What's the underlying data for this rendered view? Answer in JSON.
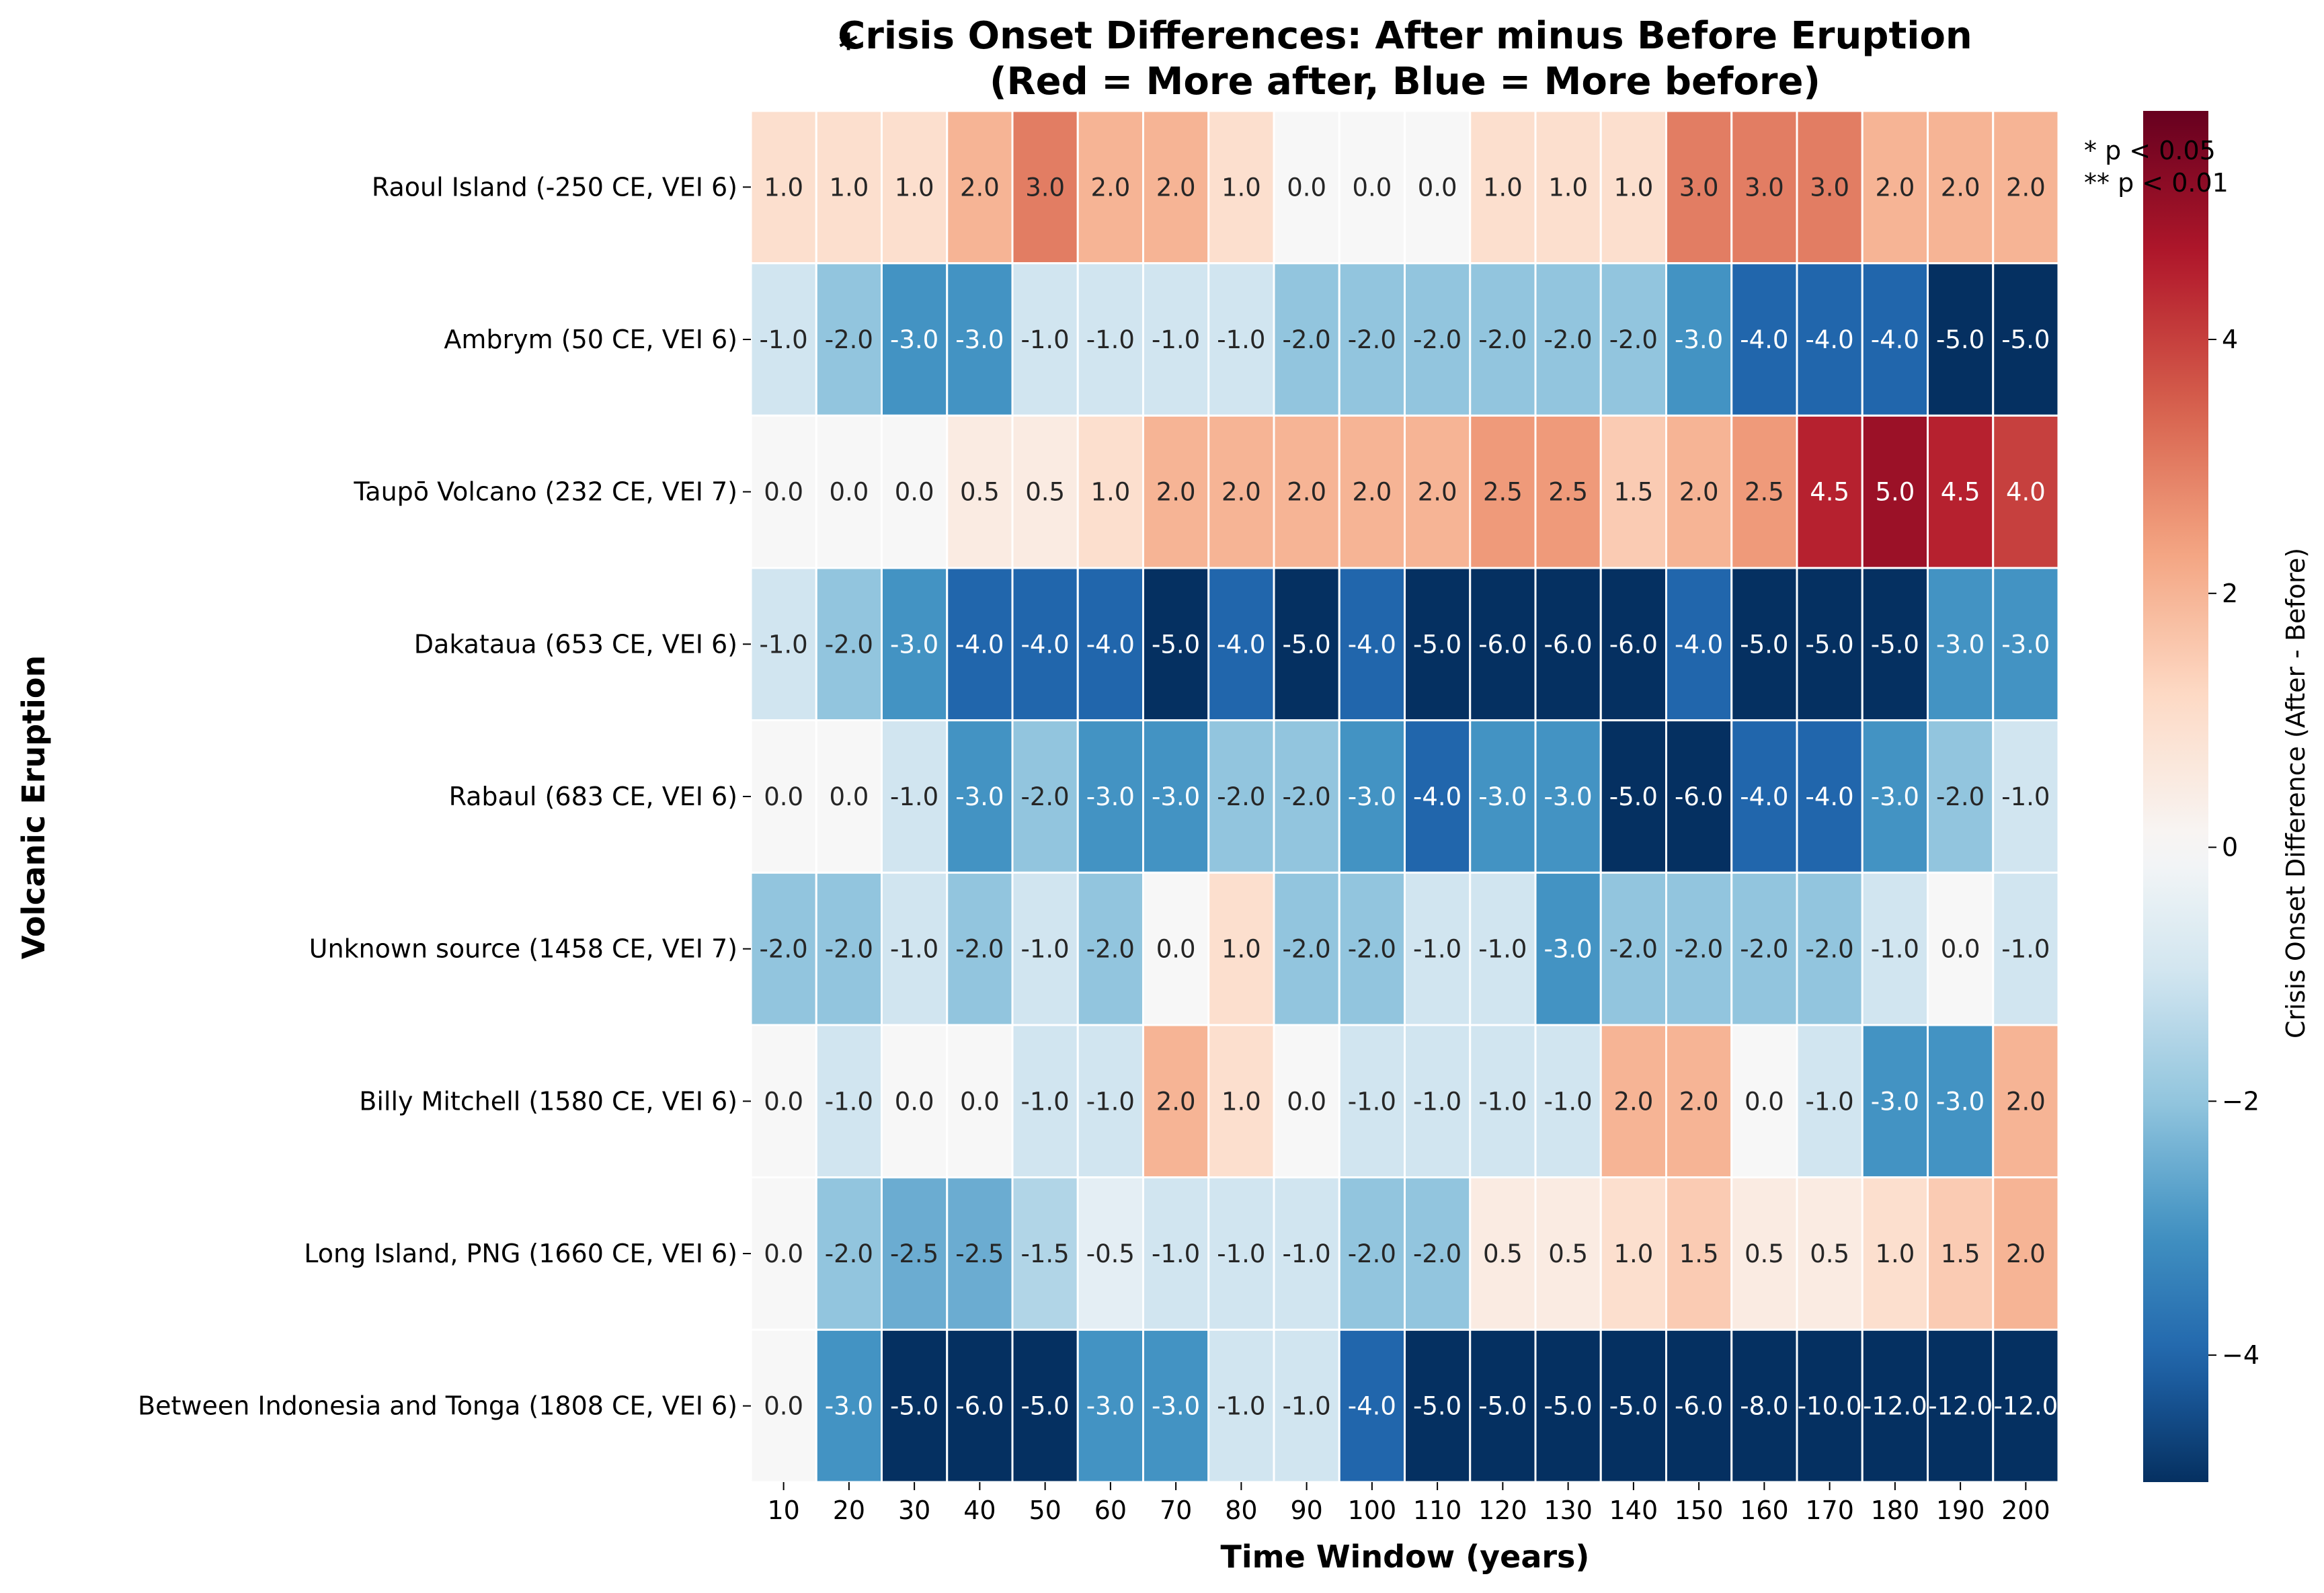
{
  "chart_data": {
    "type": "heatmap",
    "title": "Crisis Onset Differences: After minus Before Eruption",
    "subtitle": "(Red = More after, Blue = More before)",
    "title_marker": "*",
    "xlabel": "Time Window (years)",
    "ylabel": "Volcanic Eruption",
    "colorbar_label": "Crisis Onset Difference (After - Before)",
    "colorbar_range": [
      -5,
      5.8
    ],
    "colorbar_ticks": [
      -4,
      -2,
      0,
      2,
      4
    ],
    "colormap": "RdBu_r",
    "annotation_lines": [
      "* p < 0.05",
      "** p < 0.01"
    ],
    "x": [
      "10",
      "20",
      "30",
      "40",
      "50",
      "60",
      "70",
      "80",
      "90",
      "100",
      "110",
      "120",
      "130",
      "140",
      "150",
      "160",
      "170",
      "180",
      "190",
      "200"
    ],
    "y": [
      "Raoul Island  (-250 CE, VEI 6)",
      "Ambrym  (50 CE, VEI 6)",
      "Taupō Volcano  (232 CE, VEI 7)",
      "Dakataua  (653 CE, VEI 6)",
      "Rabaul  (683 CE, VEI 6)",
      "Unknown source  (1458 CE, VEI 7)",
      "Billy Mitchell  (1580 CE, VEI 6)",
      "Long Island, PNG  (1660 CE, VEI 6)",
      "Between Indonesia and Tonga  (1808 CE, VEI 6)"
    ],
    "values": [
      [
        1.0,
        1.0,
        1.0,
        2.0,
        3.0,
        2.0,
        2.0,
        1.0,
        0.0,
        0.0,
        0.0,
        1.0,
        1.0,
        1.0,
        3.0,
        3.0,
        3.0,
        2.0,
        2.0,
        2.0
      ],
      [
        -1.0,
        -2.0,
        -3.0,
        -3.0,
        -1.0,
        -1.0,
        -1.0,
        -1.0,
        -2.0,
        -2.0,
        -2.0,
        -2.0,
        -2.0,
        -2.0,
        -3.0,
        -4.0,
        -4.0,
        -4.0,
        -5.0,
        -5.0
      ],
      [
        0.0,
        0.0,
        0.0,
        0.5,
        0.5,
        1.0,
        2.0,
        2.0,
        2.0,
        2.0,
        2.0,
        2.5,
        2.5,
        1.5,
        2.0,
        2.5,
        4.5,
        5.0,
        4.5,
        4.0
      ],
      [
        -1.0,
        -2.0,
        -3.0,
        -4.0,
        -4.0,
        -4.0,
        -5.0,
        -4.0,
        -5.0,
        -4.0,
        -5.0,
        -6.0,
        -6.0,
        -6.0,
        -4.0,
        -5.0,
        -5.0,
        -5.0,
        -3.0,
        -3.0
      ],
      [
        0.0,
        0.0,
        -1.0,
        -3.0,
        -2.0,
        -3.0,
        -3.0,
        -2.0,
        -2.0,
        -3.0,
        -4.0,
        -3.0,
        -3.0,
        -5.0,
        -6.0,
        -4.0,
        -4.0,
        -3.0,
        -2.0,
        -1.0
      ],
      [
        -2.0,
        -2.0,
        -1.0,
        -2.0,
        -1.0,
        -2.0,
        0.0,
        1.0,
        -2.0,
        -2.0,
        -1.0,
        -1.0,
        -3.0,
        -2.0,
        -2.0,
        -2.0,
        -2.0,
        -1.0,
        0.0,
        -1.0
      ],
      [
        0.0,
        -1.0,
        0.0,
        0.0,
        -1.0,
        -1.0,
        2.0,
        1.0,
        0.0,
        -1.0,
        -1.0,
        -1.0,
        -1.0,
        2.0,
        2.0,
        0.0,
        -1.0,
        -3.0,
        -3.0,
        2.0
      ],
      [
        0.0,
        -2.0,
        -2.5,
        -2.5,
        -1.5,
        -0.5,
        -1.0,
        -1.0,
        -1.0,
        -2.0,
        -2.0,
        0.5,
        0.5,
        1.0,
        1.5,
        0.5,
        0.5,
        1.0,
        1.5,
        2.0
      ],
      [
        0.0,
        -3.0,
        -5.0,
        -6.0,
        -5.0,
        -3.0,
        -3.0,
        -1.0,
        -1.0,
        -4.0,
        -5.0,
        -5.0,
        -5.0,
        -5.0,
        -6.0,
        -8.0,
        -10.0,
        -12.0,
        -12.0,
        -12.0
      ]
    ]
  }
}
